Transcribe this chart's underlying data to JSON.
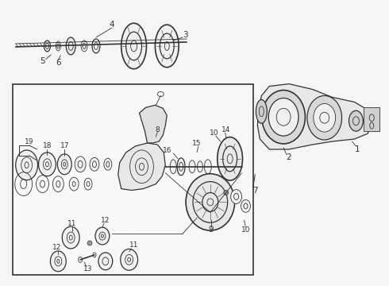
{
  "bg_color": "#f5f5f5",
  "line_color": "#333333",
  "fig_width": 4.9,
  "fig_height": 3.6,
  "dpi": 100
}
